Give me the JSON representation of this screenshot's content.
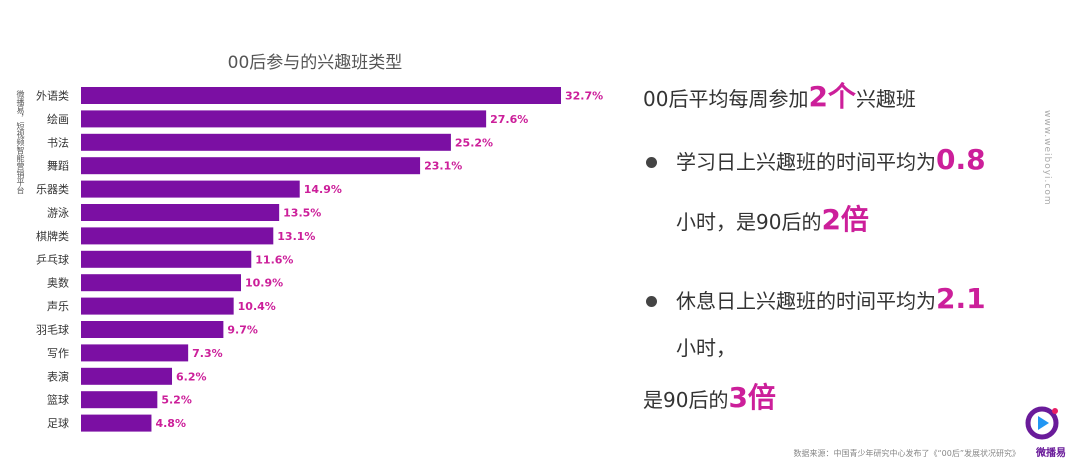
{
  "chart_data": {
    "type": "bar",
    "orientation": "horizontal",
    "title": "00后参与的兴趣班类型",
    "categories": [
      "外语类",
      "绘画",
      "书法",
      "舞蹈",
      "乐器类",
      "游泳",
      "棋牌类",
      "乒乓球",
      "奥数",
      "声乐",
      "羽毛球",
      "写作",
      "表演",
      "篮球",
      "足球"
    ],
    "values": [
      32.7,
      27.6,
      25.2,
      23.1,
      14.9,
      13.5,
      13.1,
      11.6,
      10.9,
      10.4,
      9.7,
      7.3,
      6.2,
      5.2,
      4.8
    ],
    "value_labels": [
      "32.7%",
      "27.6%",
      "25.2%",
      "23.1%",
      "14.9%",
      "13.5%",
      "13.1%",
      "11.6%",
      "10.9%",
      "10.4%",
      "9.7%",
      "7.3%",
      "6.2%",
      "5.2%",
      "4.8%"
    ],
    "bar_color": "#7b0fa3",
    "value_label_color": "#cc1f9a",
    "xlim": [
      0,
      32.7
    ],
    "grid": false,
    "legend": "none"
  },
  "side_label": "微播易，短视频智能营销平台",
  "summary": {
    "headline_pre": "00后平均每周参加",
    "headline_num": "2个",
    "headline_post": "兴趣班",
    "point1_pre": "学习日上兴趣班的时间平均为",
    "point1_num": "0.8",
    "point1_line2_pre": "小时，是90后的",
    "point1_line2_num": "2倍",
    "point2_pre": "休息日上兴趣班的时间平均为",
    "point2_num": "2.1",
    "point2_line2": "小时，",
    "point2_line3_pre": "是90后的",
    "point2_line3_num": "3倍"
  },
  "watermark": "www.weiboyi.com",
  "source": "数据来源：中国青少年研究中心发布了《“00后”发展状况研究》",
  "logo_text": "微播易",
  "colors": {
    "accent": "#cc1f9a",
    "bar": "#7b0fa3"
  }
}
